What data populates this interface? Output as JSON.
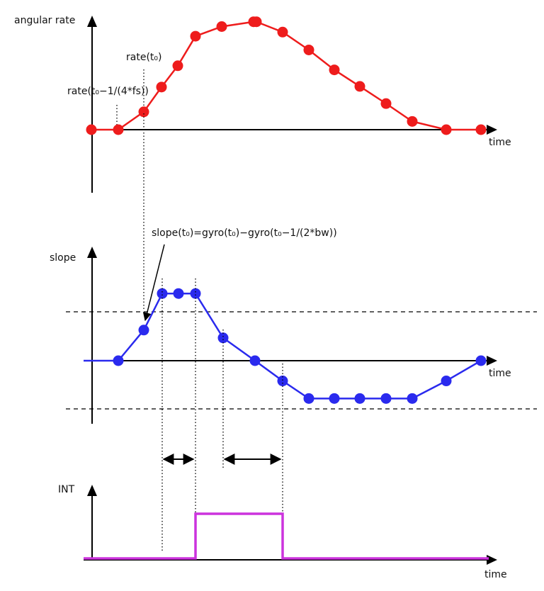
{
  "colors": {
    "rate": "#ee1c1c",
    "slope": "#2a2aee",
    "int": "#cc33dd",
    "axis": "#000000"
  },
  "icons": [
    "arrow-up-icon",
    "arrow-right-icon",
    "double-arrow-icon"
  ],
  "labels": {
    "rate_axis": "angular rate",
    "rate_t0": "rate(t₀)",
    "rate_prev": "rate(t₀−1/(4*fs))",
    "time": "time",
    "slope_axis": "slope",
    "slope_formula": "slope(t₀)=gyro(t₀)−gyro(t₀−1/(2*bw))",
    "int_axis": "INT"
  },
  "signals": {
    "rate": [
      0,
      0,
      0.26,
      0.62,
      0.93,
      1.36,
      1.5,
      1.57,
      1.57,
      1.42,
      1.16,
      0.87,
      0.63,
      0.38,
      0.12,
      0,
      0
    ],
    "slope": [
      0,
      0.47,
      1.03,
      1.03,
      1.03,
      0.35,
      0,
      -0.31,
      -0.58,
      -0.58,
      -0.58,
      -0.58,
      -0.58,
      -0.31,
      0
    ],
    "int": [
      0,
      0,
      1,
      1,
      0,
      0
    ],
    "slope_threshold": 0.72
  }
}
